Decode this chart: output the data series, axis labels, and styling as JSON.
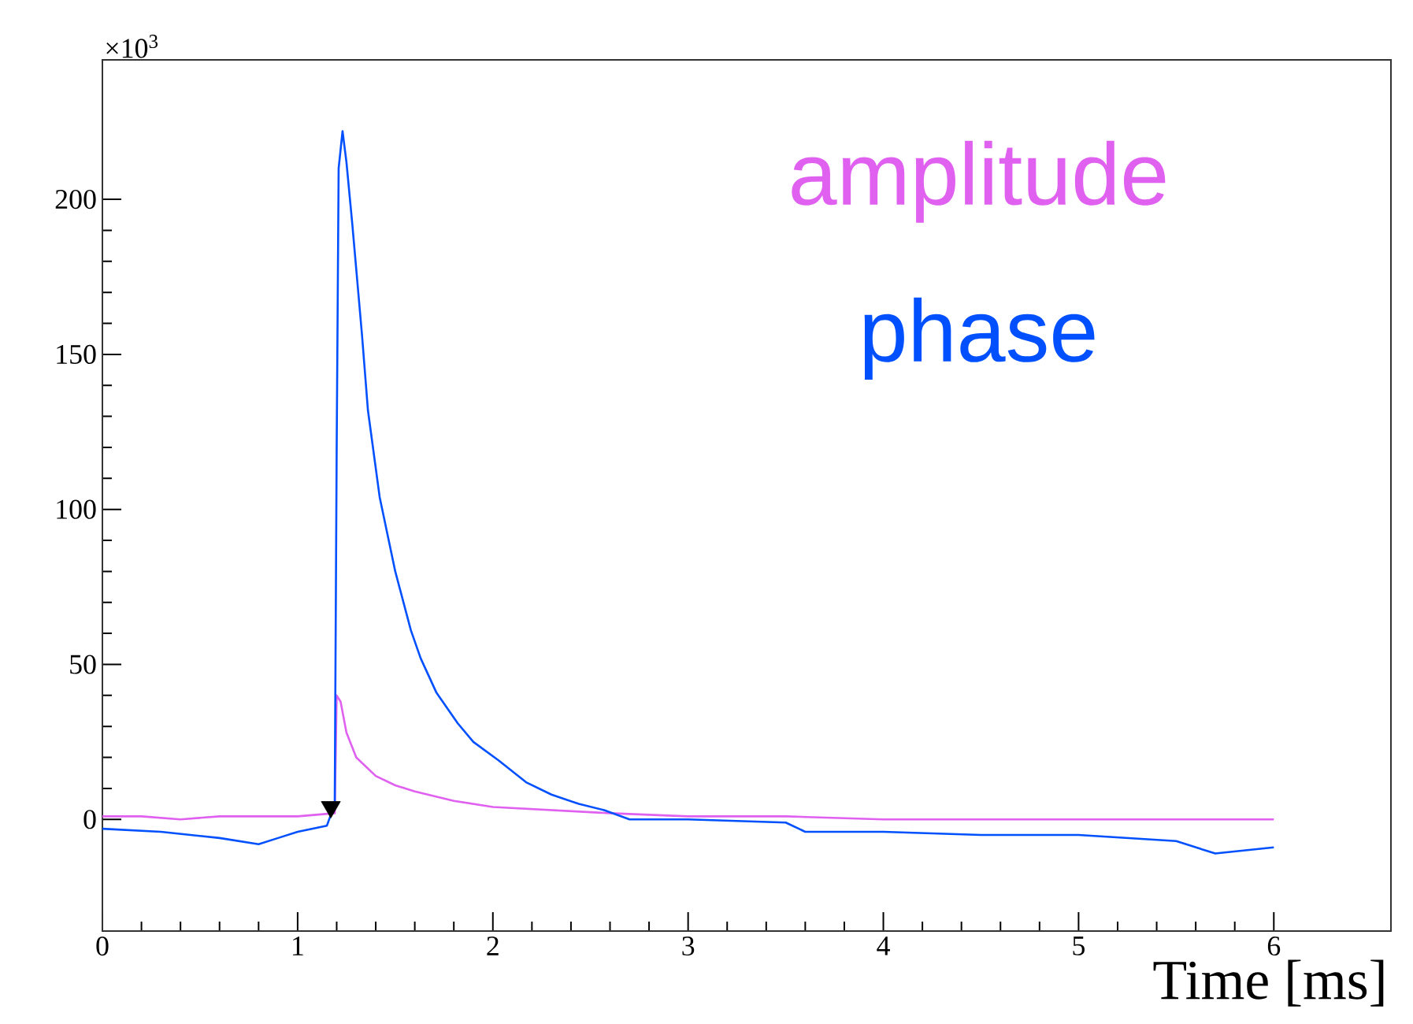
{
  "chart_data": {
    "type": "line",
    "xlabel": "Time [ms]",
    "annotations": [
      "×10$^{3}$"
    ],
    "xlim": [
      0,
      6.6
    ],
    "ylim": [
      -36,
      245
    ],
    "xticks": [
      0,
      1,
      2,
      3,
      4,
      5,
      6
    ],
    "yticks": [
      0,
      50,
      100,
      150,
      200
    ],
    "grid": false,
    "line_style": "solid",
    "marker": "none",
    "series": [
      {
        "name": "amplitude",
        "color": "#e060f0",
        "x": [
          0,
          0.2,
          0.4,
          0.6,
          0.8,
          1.0,
          1.19,
          1.2,
          1.22,
          1.25,
          1.3,
          1.4,
          1.5,
          1.6,
          1.8,
          2.0,
          2.3,
          2.6,
          3.0,
          3.5,
          4.0,
          4.5,
          5.0,
          5.5,
          6.0
        ],
        "values": [
          1,
          1,
          0,
          1,
          1,
          1,
          2,
          40,
          38,
          28,
          20,
          14,
          11,
          9,
          6,
          4,
          3,
          2,
          1,
          1,
          0,
          0,
          0,
          0,
          0
        ]
      },
      {
        "name": "phase",
        "color": "#0050ff",
        "x": [
          0,
          0.3,
          0.6,
          0.8,
          0.9,
          1.0,
          1.15,
          1.19,
          1.2,
          1.21,
          1.23,
          1.25,
          1.28,
          1.33,
          1.36,
          1.42,
          1.5,
          1.58,
          1.63,
          1.71,
          1.82,
          1.9,
          2.03,
          2.17,
          2.3,
          2.44,
          2.57,
          2.7,
          3.0,
          3.5,
          3.6,
          4.0,
          4.5,
          5.0,
          5.5,
          5.7,
          6.0
        ],
        "values": [
          -3,
          -4,
          -6,
          -8,
          -6,
          -4,
          -2,
          5,
          120,
          210,
          222,
          212,
          192,
          156,
          132,
          104,
          80,
          61,
          52,
          41,
          31,
          25,
          19,
          12,
          8,
          5,
          3,
          0,
          0,
          -1,
          -4,
          -4,
          -5,
          -5,
          -7,
          -11,
          -9
        ]
      },
      {
        "type": "scatter",
        "marker": "triangle",
        "color": "#000000",
        "x": [
          1.17
        ],
        "values": [
          4
        ]
      }
    ]
  }
}
